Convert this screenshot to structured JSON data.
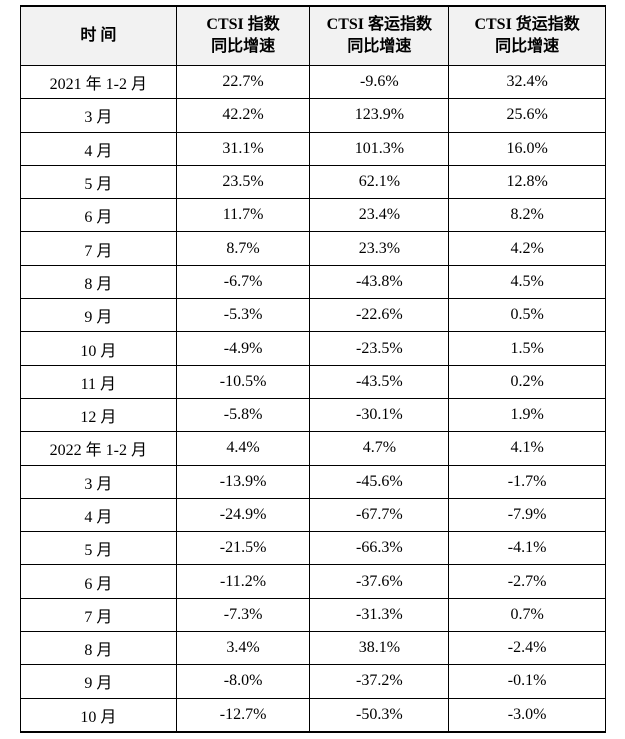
{
  "table": {
    "header": [
      [
        "时 间"
      ],
      [
        "CTSI 指数",
        "同比增速"
      ],
      [
        "CTSI 客运指数",
        "同比增速"
      ],
      [
        "CTSI 货运指数",
        "同比增速"
      ]
    ],
    "rows": [
      [
        "2021 年 1-2 月",
        "22.7%",
        "-9.6%",
        "32.4%"
      ],
      [
        "3 月",
        "42.2%",
        "123.9%",
        "25.6%"
      ],
      [
        "4 月",
        "31.1%",
        "101.3%",
        "16.0%"
      ],
      [
        "5 月",
        "23.5%",
        "62.1%",
        "12.8%"
      ],
      [
        "6 月",
        "11.7%",
        "23.4%",
        "8.2%"
      ],
      [
        "7 月",
        "8.7%",
        "23.3%",
        "4.2%"
      ],
      [
        "8 月",
        "-6.7%",
        "-43.8%",
        "4.5%"
      ],
      [
        "9 月",
        "-5.3%",
        "-22.6%",
        "0.5%"
      ],
      [
        "10 月",
        "-4.9%",
        "-23.5%",
        "1.5%"
      ],
      [
        "11 月",
        "-10.5%",
        "-43.5%",
        "0.2%"
      ],
      [
        "12 月",
        "-5.8%",
        "-30.1%",
        "1.9%"
      ],
      [
        "2022 年 1-2 月",
        "4.4%",
        "4.7%",
        "4.1%"
      ],
      [
        "3 月",
        "-13.9%",
        "-45.6%",
        "-1.7%"
      ],
      [
        "4 月",
        "-24.9%",
        "-67.7%",
        "-7.9%"
      ],
      [
        "5 月",
        "-21.5%",
        "-66.3%",
        "-4.1%"
      ],
      [
        "6 月",
        "-11.2%",
        "-37.6%",
        "-2.7%"
      ],
      [
        "7 月",
        "-7.3%",
        "-31.3%",
        "0.7%"
      ],
      [
        "8 月",
        "3.4%",
        "38.1%",
        "-2.4%"
      ],
      [
        "9 月",
        "-8.0%",
        "-37.2%",
        "-0.1%"
      ],
      [
        "10 月",
        "-12.7%",
        "-50.3%",
        "-3.0%"
      ]
    ]
  }
}
